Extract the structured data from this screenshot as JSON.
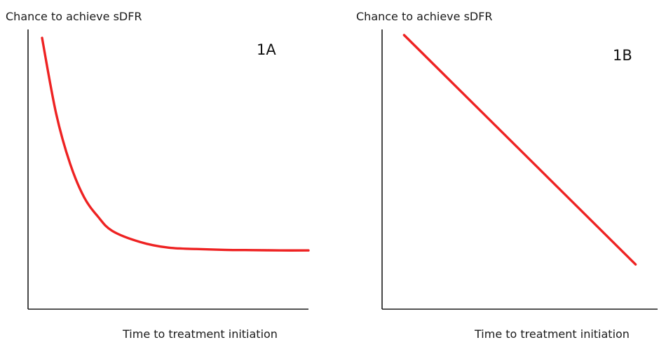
{
  "colors": {
    "curve": "#ee2222",
    "axis": "#1a1a1a"
  },
  "chart_data": [
    {
      "type": "line",
      "panel": "1A",
      "title": "",
      "xlabel": "Time to treatment initiation",
      "ylabel": "Chance to achieve sDFR",
      "shape": "exponential-decay",
      "xlim": [
        0,
        1
      ],
      "ylim": [
        0,
        1
      ],
      "grid": false,
      "series": [
        {
          "x": [
            0.05,
            0.1,
            0.15,
            0.2,
            0.25,
            0.3,
            0.4,
            0.5,
            0.6,
            0.7,
            0.8,
            0.9,
            1.0
          ],
          "values": [
            0.97,
            0.7,
            0.52,
            0.4,
            0.33,
            0.28,
            0.24,
            0.22,
            0.215,
            0.212,
            0.211,
            0.21,
            0.21
          ]
        }
      ]
    },
    {
      "type": "line",
      "panel": "1B",
      "title": "",
      "xlabel": "Time to treatment initiation",
      "ylabel": "Chance to achieve sDFR",
      "shape": "linear-decrease",
      "xlim": [
        0,
        1
      ],
      "ylim": [
        0,
        1
      ],
      "grid": false,
      "series": [
        {
          "x": [
            0.08,
            0.92
          ],
          "values": [
            0.98,
            0.16
          ]
        }
      ]
    }
  ]
}
